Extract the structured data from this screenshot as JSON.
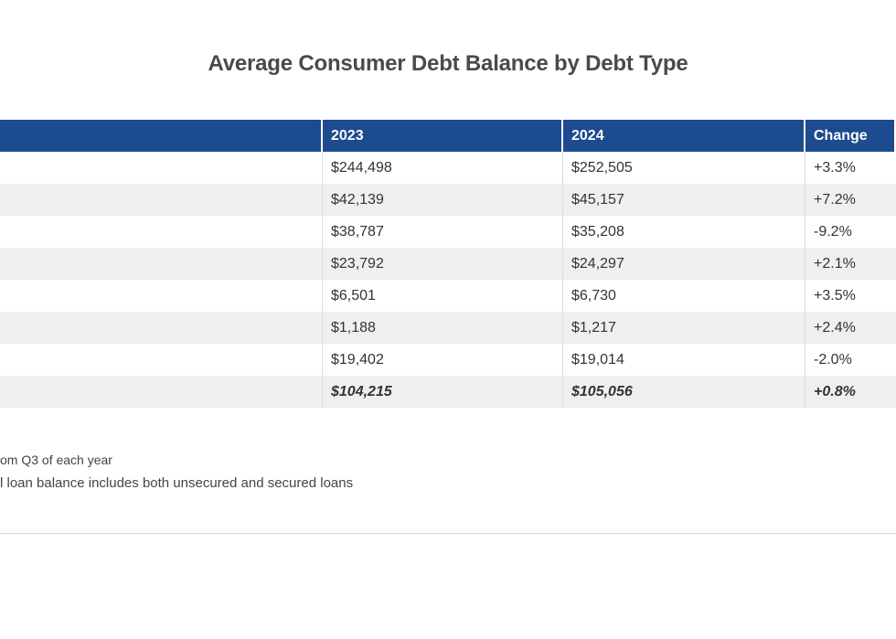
{
  "chart_data": {
    "type": "table",
    "title": "Average Consumer Debt Balance by Debt Type",
    "columns": [
      "",
      "2023",
      "2024",
      "Change"
    ],
    "rows": [
      {
        "type": "",
        "y2023": "$244,498",
        "y2024": "$252,505",
        "change": "+3.3%"
      },
      {
        "type": "",
        "y2023": "$42,139",
        "y2024": "$45,157",
        "change": "+7.2%"
      },
      {
        "type": "",
        "y2023": "$38,787",
        "y2024": "$35,208",
        "change": "-9.2%"
      },
      {
        "type": "",
        "y2023": "$23,792",
        "y2024": "$24,297",
        "change": "+2.1%"
      },
      {
        "type": "",
        "y2023": "$6,501",
        "y2024": "$6,730",
        "change": "+3.5%"
      },
      {
        "type": "",
        "y2023": "$1,188",
        "y2024": "$1,217",
        "change": "+2.4%"
      },
      {
        "type": "",
        "y2023": "$19,402",
        "y2024": "$19,014",
        "change": "-2.0%"
      }
    ],
    "total": {
      "type": "",
      "y2023": "$104,215",
      "y2024": "$105,056",
      "change": "+0.8%"
    }
  },
  "notes": [
    "om Q3 of each year",
    "l loan balance includes both unsecured and secured loans"
  ],
  "colors": {
    "header_bg": "#1d4b8f",
    "stripe": "#efefef"
  }
}
